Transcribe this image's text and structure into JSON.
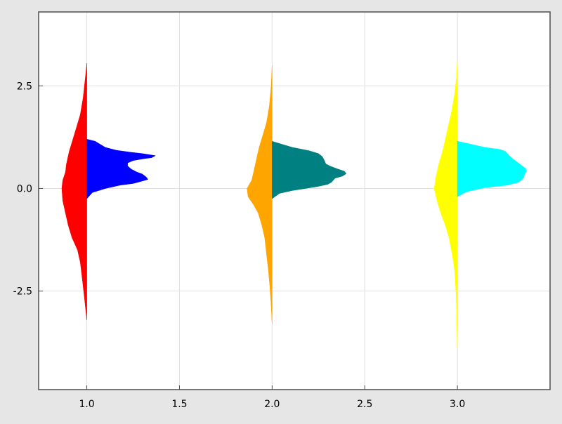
{
  "chart_data": {
    "type": "violin",
    "subtype": "split",
    "x_ticks": [
      {
        "value": 1.0,
        "label": "1.0"
      },
      {
        "value": 1.5,
        "label": "1.5"
      },
      {
        "value": 2.0,
        "label": "2.0"
      },
      {
        "value": 2.5,
        "label": "2.5"
      },
      {
        "value": 3.0,
        "label": "3.0"
      }
    ],
    "y_ticks": [
      {
        "value": -2.5,
        "label": "-2.5"
      },
      {
        "value": 0.0,
        "label": "0.0"
      },
      {
        "value": 2.5,
        "label": "2.5"
      }
    ],
    "xlim": [
      0.74,
      3.5
    ],
    "ylim": [
      -4.9,
      4.3
    ],
    "grid": true,
    "xlabel": "",
    "ylabel": "",
    "title": "",
    "violins": [
      {
        "x": 1,
        "side": "left",
        "color": "#ff0000",
        "profile": [
          [
            3.05,
            0.0
          ],
          [
            2.7,
            0.008
          ],
          [
            2.2,
            0.02
          ],
          [
            1.8,
            0.035
          ],
          [
            1.5,
            0.055
          ],
          [
            1.2,
            0.075
          ],
          [
            0.9,
            0.095
          ],
          [
            0.6,
            0.11
          ],
          [
            0.4,
            0.115
          ],
          [
            0.2,
            0.13
          ],
          [
            0.0,
            0.135
          ],
          [
            -0.3,
            0.13
          ],
          [
            -0.6,
            0.115
          ],
          [
            -0.9,
            0.1
          ],
          [
            -1.2,
            0.08
          ],
          [
            -1.5,
            0.05
          ],
          [
            -1.8,
            0.035
          ],
          [
            -2.0,
            0.03
          ],
          [
            -2.3,
            0.022
          ],
          [
            -2.7,
            0.012
          ],
          [
            -3.0,
            0.005
          ],
          [
            -3.2,
            0.0
          ]
        ]
      },
      {
        "x": 1,
        "side": "right",
        "color": "#0000ff",
        "profile": [
          [
            1.2,
            0.0
          ],
          [
            1.15,
            0.045
          ],
          [
            1.0,
            0.1
          ],
          [
            0.93,
            0.16
          ],
          [
            0.88,
            0.24
          ],
          [
            0.85,
            0.3
          ],
          [
            0.8,
            0.37
          ],
          [
            0.75,
            0.35
          ],
          [
            0.72,
            0.3
          ],
          [
            0.68,
            0.25
          ],
          [
            0.62,
            0.22
          ],
          [
            0.55,
            0.22
          ],
          [
            0.47,
            0.24
          ],
          [
            0.4,
            0.27
          ],
          [
            0.35,
            0.3
          ],
          [
            0.28,
            0.32
          ],
          [
            0.22,
            0.33
          ],
          [
            0.18,
            0.3
          ],
          [
            0.12,
            0.25
          ],
          [
            0.08,
            0.18
          ],
          [
            0.0,
            0.1
          ],
          [
            -0.1,
            0.03
          ],
          [
            -0.25,
            0.0
          ]
        ]
      },
      {
        "x": 2,
        "side": "left",
        "color": "#ffa500",
        "profile": [
          [
            3.0,
            0.0
          ],
          [
            2.5,
            0.005
          ],
          [
            2.0,
            0.015
          ],
          [
            1.6,
            0.03
          ],
          [
            1.3,
            0.05
          ],
          [
            1.0,
            0.07
          ],
          [
            0.8,
            0.08
          ],
          [
            0.6,
            0.09
          ],
          [
            0.4,
            0.1
          ],
          [
            0.2,
            0.11
          ],
          [
            0.0,
            0.135
          ],
          [
            -0.2,
            0.13
          ],
          [
            -0.4,
            0.1
          ],
          [
            -0.6,
            0.075
          ],
          [
            -0.9,
            0.055
          ],
          [
            -1.2,
            0.04
          ],
          [
            -1.6,
            0.03
          ],
          [
            -2.0,
            0.02
          ],
          [
            -2.4,
            0.012
          ],
          [
            -2.8,
            0.006
          ],
          [
            -3.3,
            0.0
          ]
        ]
      },
      {
        "x": 2,
        "side": "right",
        "color": "#008080",
        "profile": [
          [
            1.15,
            0.0
          ],
          [
            1.08,
            0.05
          ],
          [
            1.0,
            0.11
          ],
          [
            0.92,
            0.2
          ],
          [
            0.85,
            0.25
          ],
          [
            0.78,
            0.27
          ],
          [
            0.7,
            0.28
          ],
          [
            0.6,
            0.29
          ],
          [
            0.55,
            0.31
          ],
          [
            0.48,
            0.35
          ],
          [
            0.42,
            0.39
          ],
          [
            0.36,
            0.4
          ],
          [
            0.3,
            0.38
          ],
          [
            0.25,
            0.34
          ],
          [
            0.2,
            0.33
          ],
          [
            0.15,
            0.32
          ],
          [
            0.1,
            0.3
          ],
          [
            0.05,
            0.25
          ],
          [
            0.0,
            0.18
          ],
          [
            -0.05,
            0.11
          ],
          [
            -0.12,
            0.04
          ],
          [
            -0.25,
            0.0
          ]
        ]
      },
      {
        "x": 3,
        "side": "left",
        "color": "#ffff00",
        "profile": [
          [
            3.1,
            0.0
          ],
          [
            2.7,
            0.005
          ],
          [
            2.3,
            0.015
          ],
          [
            1.9,
            0.03
          ],
          [
            1.5,
            0.05
          ],
          [
            1.2,
            0.065
          ],
          [
            0.9,
            0.08
          ],
          [
            0.6,
            0.1
          ],
          [
            0.3,
            0.115
          ],
          [
            0.0,
            0.125
          ],
          [
            -0.3,
            0.11
          ],
          [
            -0.6,
            0.09
          ],
          [
            -0.9,
            0.065
          ],
          [
            -1.2,
            0.045
          ],
          [
            -1.6,
            0.028
          ],
          [
            -2.0,
            0.015
          ],
          [
            -2.5,
            0.008
          ],
          [
            -3.0,
            0.004
          ],
          [
            -3.6,
            0.002
          ],
          [
            -3.9,
            0.0
          ]
        ]
      },
      {
        "x": 3,
        "side": "right",
        "color": "#00ffff",
        "profile": [
          [
            1.15,
            0.0
          ],
          [
            1.1,
            0.05
          ],
          [
            1.0,
            0.15
          ],
          [
            0.95,
            0.23
          ],
          [
            0.9,
            0.26
          ],
          [
            0.85,
            0.27
          ],
          [
            0.8,
            0.28
          ],
          [
            0.72,
            0.3
          ],
          [
            0.65,
            0.32
          ],
          [
            0.55,
            0.35
          ],
          [
            0.48,
            0.37
          ],
          [
            0.4,
            0.37
          ],
          [
            0.33,
            0.36
          ],
          [
            0.28,
            0.36
          ],
          [
            0.22,
            0.35
          ],
          [
            0.15,
            0.33
          ],
          [
            0.08,
            0.27
          ],
          [
            0.02,
            0.15
          ],
          [
            -0.08,
            0.05
          ],
          [
            -0.2,
            0.0
          ]
        ]
      }
    ]
  }
}
